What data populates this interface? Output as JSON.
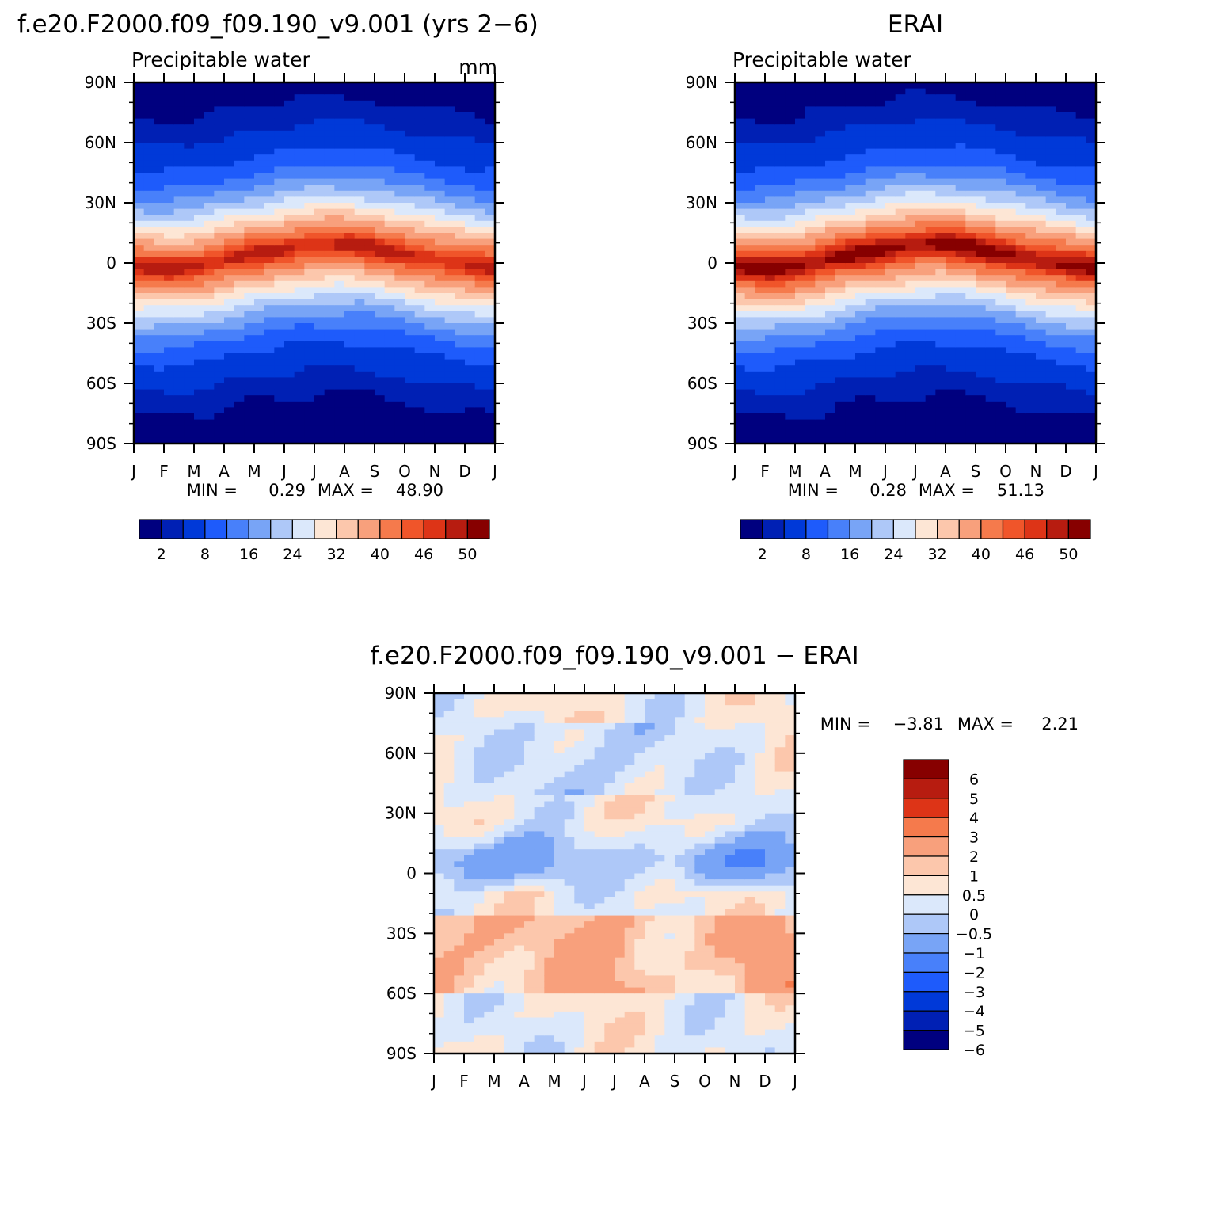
{
  "chart_data": [
    {
      "type": "heatmap",
      "title": "f.e20.F2000.f09_f09.190_v9.001 (yrs 2−6)",
      "subtitle": "Precipitable water",
      "units": "mm",
      "x_tick_labels": [
        "J",
        "F",
        "M",
        "A",
        "M",
        "J",
        "J",
        "A",
        "S",
        "O",
        "N",
        "D",
        "J"
      ],
      "y_tick_labels": [
        "90N",
        "60N",
        "30N",
        "0",
        "30S",
        "60S",
        "90S"
      ],
      "ylim": [
        -90,
        90
      ],
      "min_label": "MIN =",
      "min_value": "0.29",
      "max_label": "MAX =",
      "max_value": "48.90",
      "colorbar_labels": [
        "2",
        "8",
        "16",
        "24",
        "32",
        "40",
        "46",
        "50"
      ],
      "colorbar_levels": [
        2,
        4,
        8,
        12,
        16,
        20,
        24,
        28,
        32,
        36,
        40,
        44,
        46,
        48,
        50
      ],
      "colors": [
        "#00007f",
        "#0020b4",
        "#0039d8",
        "#1e5bfb",
        "#4880fa",
        "#78a4f6",
        "#aec8f8",
        "#dbe8fb",
        "#fde6d5",
        "#fcc7ac",
        "#f8a07c",
        "#f57a4c",
        "#f0552a",
        "#dd3417",
        "#b71c10",
        "#870000"
      ],
      "field_model": {
        "months": [
          "J",
          "F",
          "M",
          "A",
          "M",
          "J",
          "J",
          "A",
          "S",
          "O",
          "N",
          "D"
        ],
        "peak_pw": 48.9,
        "polar_pw": 0.29
      }
    },
    {
      "type": "heatmap",
      "title": "ERAI",
      "subtitle": "Precipitable water",
      "x_tick_labels": [
        "J",
        "F",
        "M",
        "A",
        "M",
        "J",
        "J",
        "A",
        "S",
        "O",
        "N",
        "D",
        "J"
      ],
      "y_tick_labels": [
        "90N",
        "60N",
        "30N",
        "0",
        "30S",
        "60S",
        "90S"
      ],
      "ylim": [
        -90,
        90
      ],
      "min_label": "MIN =",
      "min_value": "0.28",
      "max_label": "MAX =",
      "max_value": "51.13",
      "colorbar_labels": [
        "2",
        "8",
        "16",
        "24",
        "32",
        "40",
        "46",
        "50"
      ],
      "colorbar_levels": [
        2,
        4,
        8,
        12,
        16,
        20,
        24,
        28,
        32,
        36,
        40,
        44,
        46,
        48,
        50
      ],
      "colors": [
        "#00007f",
        "#0020b4",
        "#0039d8",
        "#1e5bfb",
        "#4880fa",
        "#78a4f6",
        "#aec8f8",
        "#dbe8fb",
        "#fde6d5",
        "#fcc7ac",
        "#f8a07c",
        "#f57a4c",
        "#f0552a",
        "#dd3417",
        "#b71c10",
        "#870000"
      ],
      "field_model": {
        "peak_pw": 51.13,
        "polar_pw": 0.28
      }
    },
    {
      "type": "heatmap",
      "title": "f.e20.F2000.f09_f09.190_v9.001 − ERAI",
      "x_tick_labels": [
        "J",
        "F",
        "M",
        "A",
        "M",
        "J",
        "J",
        "A",
        "S",
        "O",
        "N",
        "D",
        "J"
      ],
      "y_tick_labels": [
        "90N",
        "60N",
        "30N",
        "0",
        "30S",
        "60S",
        "90S"
      ],
      "ylim": [
        -90,
        90
      ],
      "min_label": "MIN =",
      "min_value": "−3.81",
      "max_label": "MAX =",
      "max_value": "2.21",
      "colorbar_labels": [
        "6",
        "5",
        "4",
        "3",
        "2",
        "1",
        "0.5",
        "0",
        "−0.5",
        "−1",
        "−2",
        "−3",
        "−4",
        "−5",
        "−6"
      ],
      "colorbar_levels": [
        6,
        5,
        4,
        3,
        2,
        1,
        0.5,
        0,
        -0.5,
        -1,
        -2,
        -3,
        -4,
        -5,
        -6
      ],
      "colors": [
        "#870000",
        "#b71c10",
        "#dd3417",
        "#f57a4c",
        "#f8a07c",
        "#fcc7ac",
        "#fde6d5",
        "#dbe8fb",
        "#aec8f8",
        "#78a4f6",
        "#4880fa",
        "#1e5bfb",
        "#0039d8",
        "#0020b4",
        "#00007f"
      ]
    }
  ]
}
